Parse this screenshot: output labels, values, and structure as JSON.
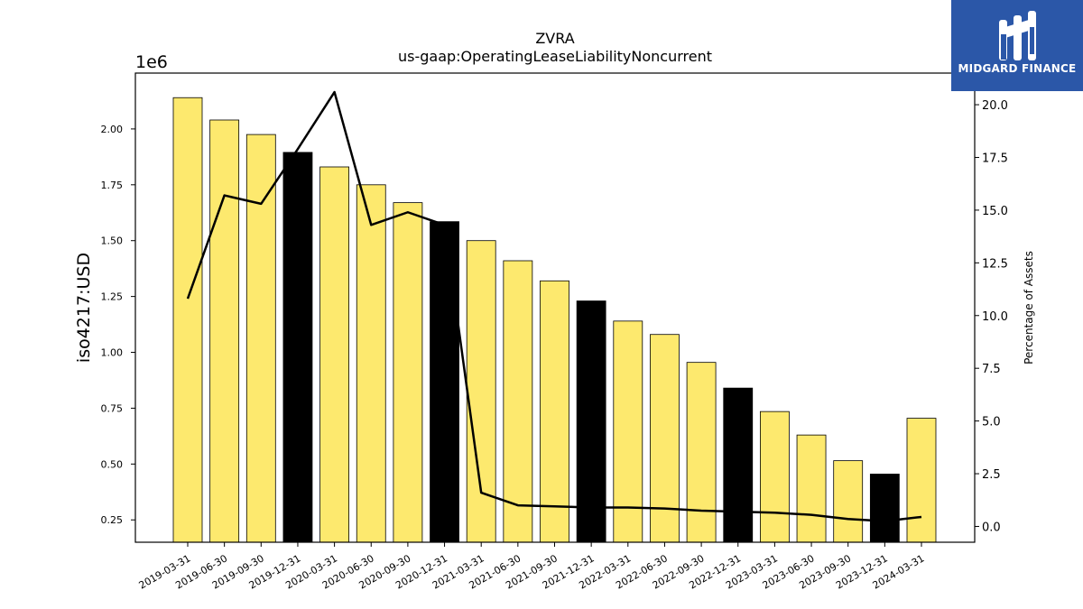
{
  "chart_data": {
    "type": "bar",
    "title": "ZVRA",
    "subtitle": "us-gaap:OperatingLeaseLiabilityNoncurrent",
    "ylabel": "iso4217:USD",
    "y_multiplier": "1e6",
    "y2label": "Percentage of Assets",
    "categories": [
      "2019-03-31",
      "2019-06-30",
      "2019-09-30",
      "2019-12-31",
      "2020-03-31",
      "2020-06-30",
      "2020-09-30",
      "2020-12-31",
      "2021-03-31",
      "2021-06-30",
      "2021-09-30",
      "2021-12-31",
      "2022-03-31",
      "2022-06-30",
      "2022-09-30",
      "2022-12-31",
      "2023-03-31",
      "2023-06-30",
      "2023-09-30",
      "2023-12-31",
      "2024-03-31"
    ],
    "values": [
      2140000,
      2040000,
      1975000,
      1895000,
      1830000,
      1750000,
      1670000,
      1585000,
      1500000,
      1410000,
      1320000,
      1230000,
      1140000,
      1080000,
      955000,
      840000,
      735000,
      630000,
      515000,
      455000,
      705000
    ],
    "highlight": [
      false,
      false,
      false,
      true,
      false,
      false,
      false,
      true,
      false,
      false,
      false,
      true,
      false,
      false,
      false,
      true,
      false,
      false,
      false,
      true,
      false
    ],
    "bar_color": "#fde96e",
    "highlight_color": "#000000",
    "line_series": {
      "name": "Percentage of Assets",
      "values": [
        10.8,
        15.7,
        15.3,
        17.9,
        20.6,
        14.3,
        14.9,
        14.3,
        1.6,
        1.0,
        0.95,
        0.9,
        0.9,
        0.85,
        0.75,
        0.7,
        0.65,
        0.55,
        0.35,
        0.25,
        0.45
      ]
    },
    "ylim": [
      0.15,
      2.25
    ],
    "y2lim": [
      -0.75,
      21.5
    ],
    "yticks": [
      "0.25",
      "0.50",
      "0.75",
      "1.00",
      "1.25",
      "1.50",
      "1.75",
      "2.00"
    ],
    "y2ticks": [
      "0.0",
      "2.5",
      "5.0",
      "7.5",
      "10.0",
      "12.5",
      "15.0",
      "17.5",
      "20.0"
    ]
  },
  "brand": {
    "name": "MIDGARD FINANCE",
    "color": "#2b57a8"
  }
}
